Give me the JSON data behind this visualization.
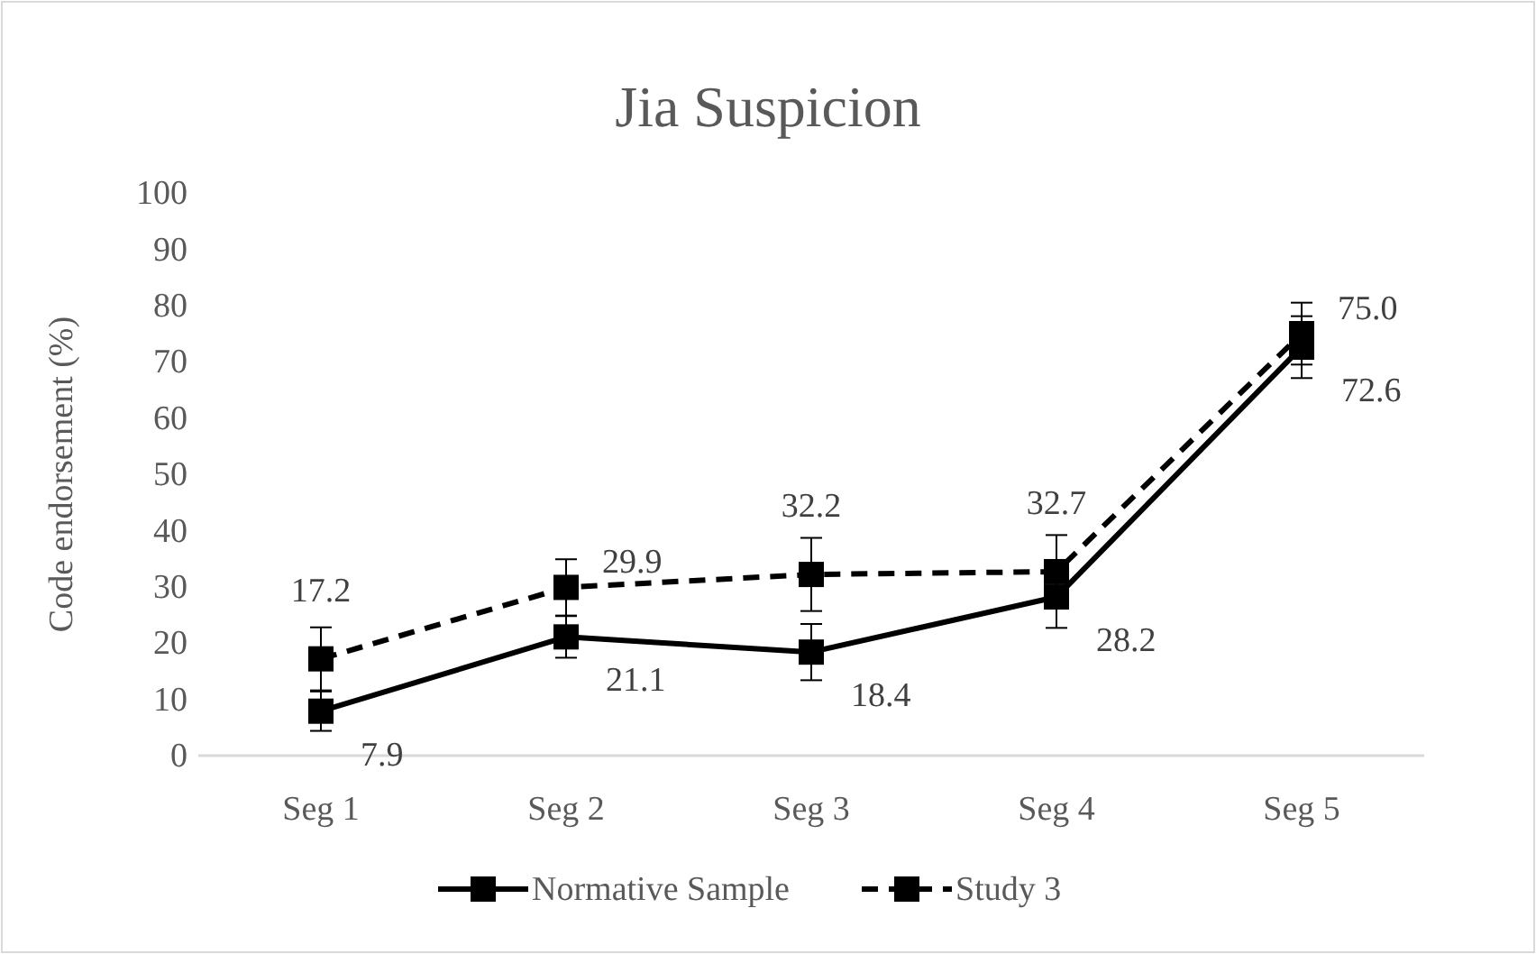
{
  "chart_data": {
    "type": "line",
    "title": "Jia Suspicion",
    "ylabel": "Code endorsement (%)",
    "categories": [
      "Seg 1",
      "Seg 2",
      "Seg 3",
      "Seg 4",
      "Seg 5"
    ],
    "series": [
      {
        "name": "Normative Sample",
        "color": "#000000",
        "values": [
          7.9,
          21.1,
          18.4,
          28.2,
          72.6
        ],
        "errors": [
          3.5,
          3.7,
          5,
          5.5,
          5.5
        ],
        "line_style": "solid",
        "value_labels": [
          "7.9",
          "21.1",
          "18.4",
          "28.2",
          "72.6"
        ]
      },
      {
        "name": "Study 3",
        "color": "#000000",
        "values": [
          17.2,
          29.9,
          32.2,
          32.7,
          75.0
        ],
        "errors": [
          5.6,
          5,
          6.5,
          6.5,
          5.5
        ],
        "line_style": "dashed",
        "value_labels": [
          "17.2",
          "29.9",
          "32.2",
          "32.7",
          "75.0"
        ]
      }
    ],
    "ylim": [
      0,
      100
    ],
    "yticks": [
      0,
      10,
      20,
      30,
      40,
      50,
      60,
      70,
      80,
      90,
      100
    ],
    "grid": false,
    "legend": "bottom",
    "marker": "square"
  }
}
